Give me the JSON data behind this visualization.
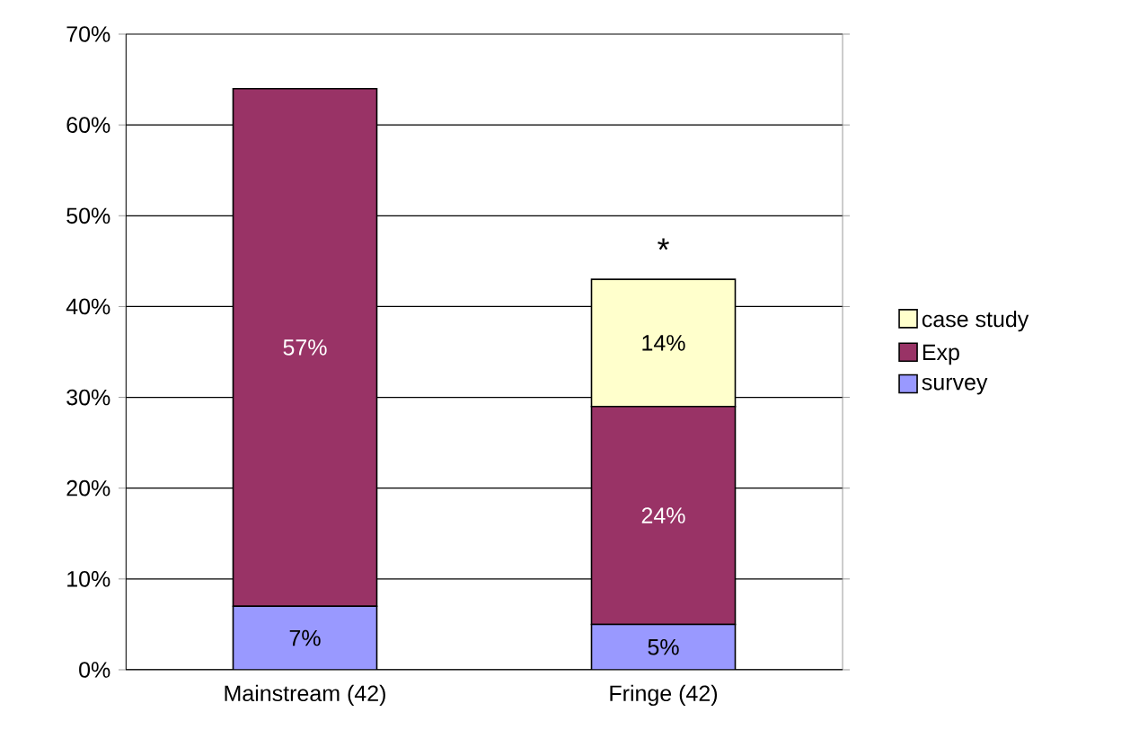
{
  "chart_data": {
    "type": "bar",
    "stacked": true,
    "categories": [
      "Mainstream (42)",
      "Fringe (42)"
    ],
    "series": [
      {
        "name": "survey",
        "color": "#9999ff",
        "values": [
          7,
          5
        ],
        "value_labels": [
          "7%",
          "5%"
        ]
      },
      {
        "name": "Exp",
        "color": "#993366",
        "values": [
          57,
          24
        ],
        "value_labels": [
          "57%",
          "24%"
        ]
      },
      {
        "name": "case study",
        "color": "#ffffcc",
        "values": [
          null,
          14
        ],
        "value_labels": [
          null,
          "14%"
        ]
      }
    ],
    "ylim": [
      0,
      70
    ],
    "yticks": [
      {
        "value": 0,
        "label": "0%"
      },
      {
        "value": 10,
        "label": "10%"
      },
      {
        "value": 20,
        "label": "20%"
      },
      {
        "value": 30,
        "label": "30%"
      },
      {
        "value": 40,
        "label": "40%"
      },
      {
        "value": 50,
        "label": "50%"
      },
      {
        "value": 60,
        "label": "60%"
      },
      {
        "value": 70,
        "label": "70%"
      }
    ],
    "grid": "y",
    "legend": "right",
    "annotations": [
      "*"
    ]
  }
}
